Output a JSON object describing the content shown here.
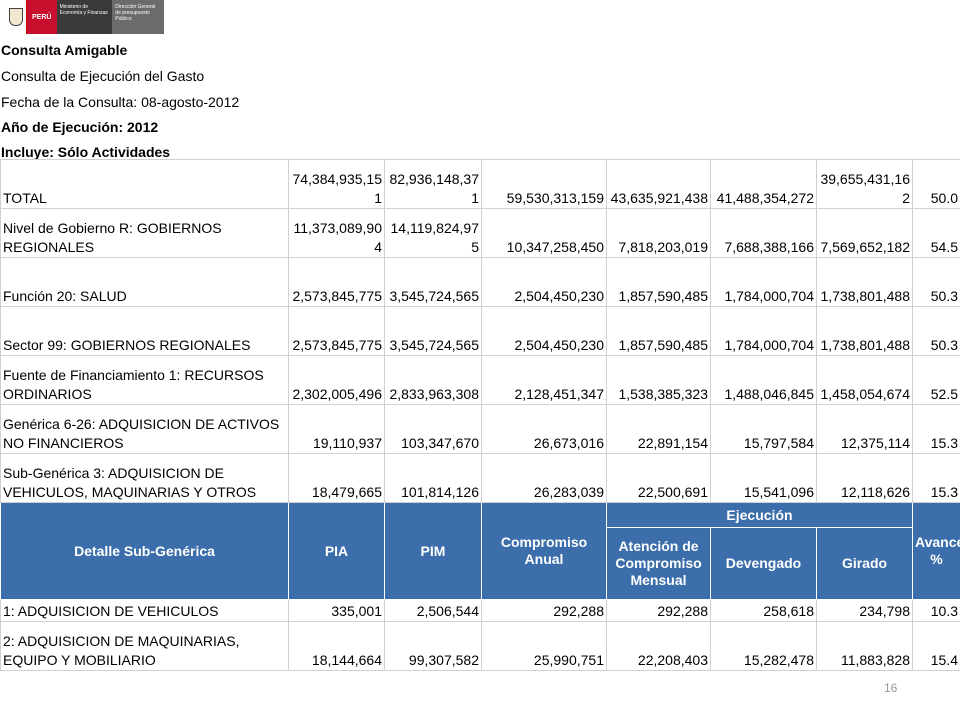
{
  "logo": {
    "peru": "PERÚ",
    "ministry": "Ministerio de Economía y Finanzas",
    "direction": "Dirección General de presupuesto Público"
  },
  "header": {
    "app_title": "Consulta Amigable",
    "subtitle": "Consulta de Ejecución del Gasto",
    "date_line": "Fecha de la Consulta: 08-agosto-2012",
    "year_line": "Año de Ejecución: 2012",
    "includes_line": "Incluye: Sólo Actividades"
  },
  "summary_rows": [
    {
      "label": "TOTAL",
      "pia": "74,384,935,151",
      "pim": "82,936,148,371",
      "compromiso": "59,530,313,159",
      "atencion": "43,635,921,438",
      "devengado": "41,488,354,272",
      "girado": "39,655,431,162",
      "avance": "50.0"
    },
    {
      "label": "Nivel de Gobierno R: GOBIERNOS REGIONALES",
      "pia": "11,373,089,904",
      "pim": "14,119,824,975",
      "compromiso": "10,347,258,450",
      "atencion": "7,818,203,019",
      "devengado": "7,688,388,166",
      "girado": "7,569,652,182",
      "avance": "54.5"
    },
    {
      "label": "Función 20: SALUD",
      "pia": "2,573,845,775",
      "pim": "3,545,724,565",
      "compromiso": "2,504,450,230",
      "atencion": "1,857,590,485",
      "devengado": "1,784,000,704",
      "girado": "1,738,801,488",
      "avance": "50.3"
    },
    {
      "label": "Sector 99: GOBIERNOS REGIONALES",
      "pia": "2,573,845,775",
      "pim": "3,545,724,565",
      "compromiso": "2,504,450,230",
      "atencion": "1,857,590,485",
      "devengado": "1,784,000,704",
      "girado": "1,738,801,488",
      "avance": "50.3"
    },
    {
      "label": "Fuente de Financiamiento 1: RECURSOS ORDINARIOS",
      "pia": "2,302,005,496",
      "pim": "2,833,963,308",
      "compromiso": "2,128,451,347",
      "atencion": "1,538,385,323",
      "devengado": "1,488,046,845",
      "girado": "1,458,054,674",
      "avance": "52.5"
    },
    {
      "label": "Genérica 6-26: ADQUISICION DE ACTIVOS NO FINANCIEROS",
      "pia": "19,110,937",
      "pim": "103,347,670",
      "compromiso": "26,673,016",
      "atencion": "22,891,154",
      "devengado": "15,797,584",
      "girado": "12,375,114",
      "avance": "15.3"
    },
    {
      "label": "Sub-Genérica 3: ADQUISICION DE VEHICULOS, MAQUINARIAS Y OTROS",
      "pia": "18,479,665",
      "pim": "101,814,126",
      "compromiso": "26,283,039",
      "atencion": "22,500,691",
      "devengado": "15,541,096",
      "girado": "12,118,626",
      "avance": "15.3"
    }
  ],
  "columns": {
    "detalle": "Detalle Sub-Genérica",
    "pia": "PIA",
    "pim": "PIM",
    "compromiso": "Compromiso Anual",
    "ejecucion": "Ejecución",
    "atencion": "Atención de Compromiso Mensual",
    "devengado": "Devengado",
    "girado": "Girado",
    "avance": "Avance %"
  },
  "detail_rows": [
    {
      "label": "1: ADQUISICION DE VEHICULOS",
      "pia": "335,001",
      "pim": "2,506,544",
      "compromiso": "292,288",
      "atencion": "292,288",
      "devengado": "258,618",
      "girado": "234,798",
      "avance": "10.3"
    },
    {
      "label": "2: ADQUISICION DE MAQUINARIAS, EQUIPO Y MOBILIARIO",
      "pia": "18,144,664",
      "pim": "99,307,582",
      "compromiso": "25,990,751",
      "atencion": "22,208,403",
      "devengado": "15,282,478",
      "girado": "11,883,828",
      "avance": "15.4"
    }
  ],
  "page_number": "16"
}
